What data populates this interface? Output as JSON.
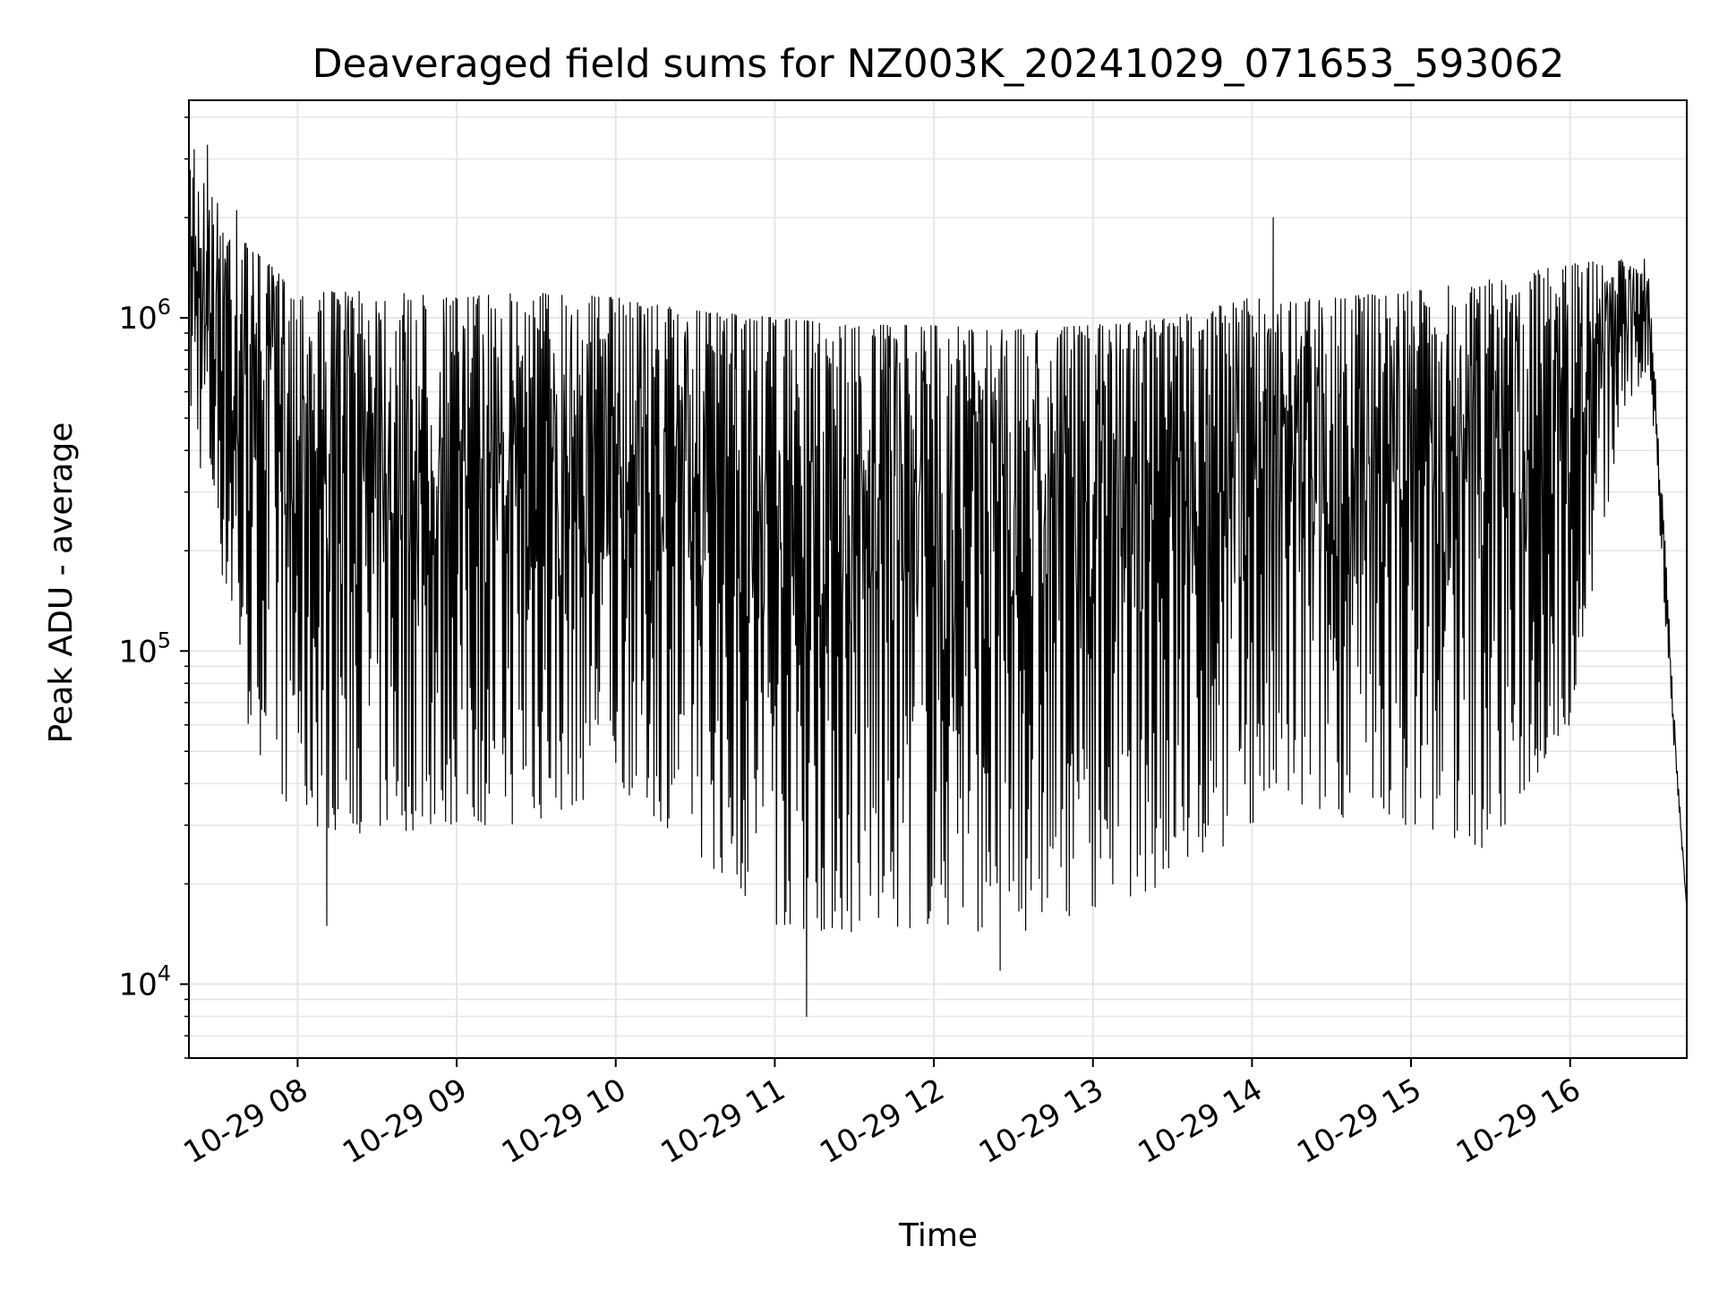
{
  "chart_data": {
    "type": "line",
    "title": "Deaveraged field sums for NZ003K_20241029_071653_593062",
    "xlabel": "Time",
    "ylabel": "Peak ADU - average",
    "yscale": "log",
    "ylim": [
      6000,
      4500000
    ],
    "xlim": [
      "2024-10-29 07:19",
      "2024-10-29 16:44"
    ],
    "grid": true,
    "line_color": "#000000",
    "x_ticks": [
      {
        "value": "2024-10-29 08:00",
        "label": "10-29 08"
      },
      {
        "value": "2024-10-29 09:00",
        "label": "10-29 09"
      },
      {
        "value": "2024-10-29 10:00",
        "label": "10-29 10"
      },
      {
        "value": "2024-10-29 11:00",
        "label": "10-29 11"
      },
      {
        "value": "2024-10-29 12:00",
        "label": "10-29 12"
      },
      {
        "value": "2024-10-29 13:00",
        "label": "10-29 13"
      },
      {
        "value": "2024-10-29 14:00",
        "label": "10-29 14"
      },
      {
        "value": "2024-10-29 15:00",
        "label": "10-29 15"
      },
      {
        "value": "2024-10-29 16:00",
        "label": "10-29 16"
      }
    ],
    "y_ticks": [
      {
        "value": 10000,
        "base": "10",
        "exp": "4"
      },
      {
        "value": 100000,
        "base": "10",
        "exp": "5"
      },
      {
        "value": 1000000,
        "base": "10",
        "exp": "6"
      }
    ],
    "envelope": {
      "x": [
        "2024-10-29 07:19",
        "2024-10-29 07:30",
        "2024-10-29 07:40",
        "2024-10-29 08:00",
        "2024-10-29 08:30",
        "2024-10-29 09:00",
        "2024-10-29 09:30",
        "2024-10-29 10:00",
        "2024-10-29 10:30",
        "2024-10-29 11:00",
        "2024-10-29 11:30",
        "2024-10-29 12:00",
        "2024-10-29 12:30",
        "2024-10-29 13:00",
        "2024-10-29 13:30",
        "2024-10-29 14:00",
        "2024-10-29 14:30",
        "2024-10-29 15:00",
        "2024-10-29 15:30",
        "2024-10-29 16:00",
        "2024-10-29 16:20",
        "2024-10-29 16:30",
        "2024-10-29 16:36",
        "2024-10-29 16:40",
        "2024-10-29 16:44"
      ],
      "upper": [
        3000000,
        2200000,
        1700000,
        1200000,
        1200000,
        1150000,
        1200000,
        1150000,
        1050000,
        1000000,
        950000,
        950000,
        920000,
        950000,
        1000000,
        1150000,
        1150000,
        1200000,
        1300000,
        1450000,
        1500000,
        1300000,
        200000,
        50000,
        17000
      ],
      "lower": [
        500000,
        200000,
        60000,
        30000,
        28000,
        30000,
        30000,
        40000,
        25000,
        15000,
        14000,
        15000,
        14000,
        17000,
        20000,
        30000,
        32000,
        30000,
        25000,
        60000,
        500000,
        700000,
        120000,
        40000,
        17000
      ]
    },
    "spikes": [
      {
        "x": "2024-10-29 07:21",
        "value": 3200000
      },
      {
        "x": "2024-10-29 07:26",
        "value": 3300000
      },
      {
        "x": "2024-10-29 07:37",
        "value": 2100000
      },
      {
        "x": "2024-10-29 08:11",
        "value": 15000
      },
      {
        "x": "2024-10-29 11:12",
        "value": 8000
      },
      {
        "x": "2024-10-29 12:25",
        "value": 11000
      },
      {
        "x": "2024-10-29 14:08",
        "value": 2000000
      },
      {
        "x": "2024-10-29 16:28",
        "value": 1500000
      }
    ]
  }
}
